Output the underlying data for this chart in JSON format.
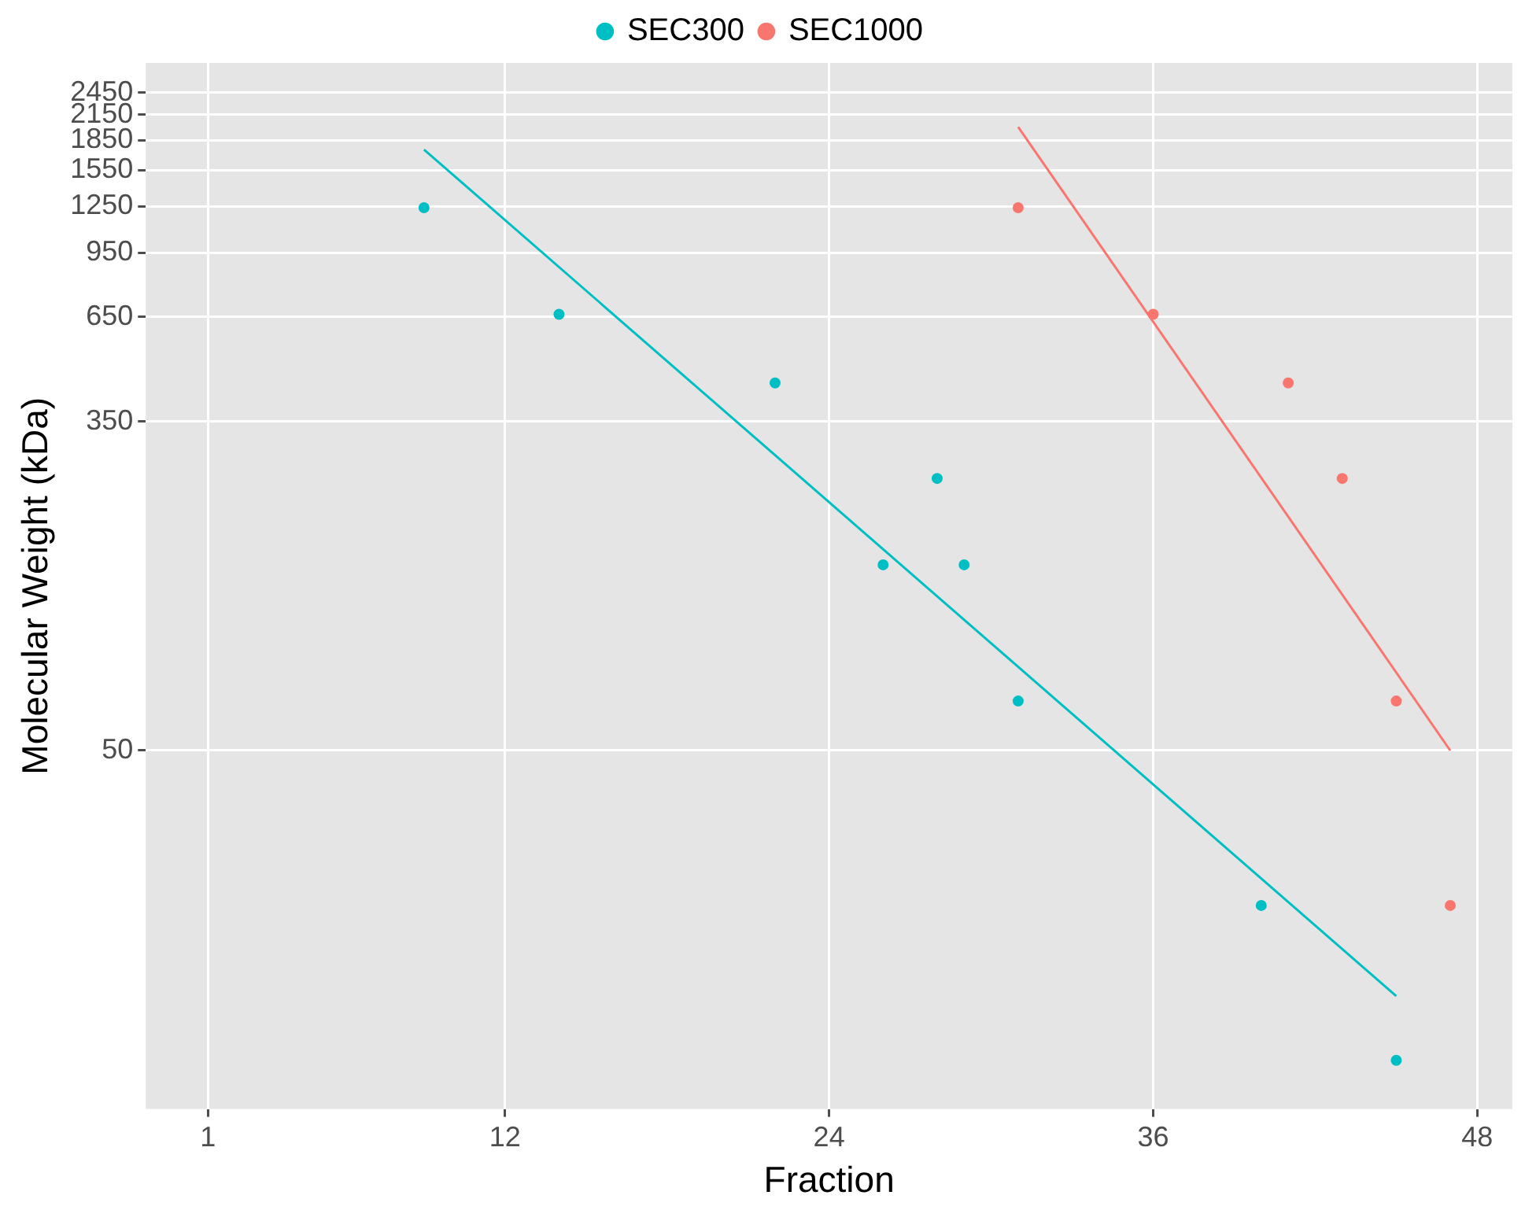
{
  "chart_data": {
    "type": "scatter",
    "xlabel": "Fraction",
    "ylabel": "Molecular Weight (kDa)",
    "log": "y",
    "grid": true,
    "legend": "top",
    "xlim": [
      -1.3,
      49.3
    ],
    "xticks": [
      1,
      12,
      24,
      36,
      48
    ],
    "ylim": [
      6,
      2920
    ],
    "yticks": [
      50,
      350,
      650,
      950,
      1250,
      1550,
      1850,
      2150,
      2450
    ],
    "series": [
      {
        "name": "SEC300",
        "color": "#00bfc4",
        "marker": "circle",
        "x": [
          9,
          14,
          22,
          28,
          26,
          29,
          31,
          40,
          45
        ],
        "values": [
          1240,
          660,
          440,
          250,
          150,
          150,
          67,
          20,
          8
        ]
      },
      {
        "name": "SEC1000",
        "color": "#f8766d",
        "marker": "circle",
        "x": [
          31,
          36,
          41,
          43,
          45,
          47
        ],
        "values": [
          1240,
          660,
          440,
          250,
          67,
          20
        ]
      },
      {
        "type": "line",
        "color": "#00bfc4",
        "marker": "none",
        "x": [
          9,
          45
        ],
        "values": [
          1750,
          11.7
        ]
      },
      {
        "type": "line",
        "color": "#f8766d",
        "marker": "none",
        "x": [
          31,
          47
        ],
        "values": [
          2000,
          50
        ]
      }
    ]
  }
}
